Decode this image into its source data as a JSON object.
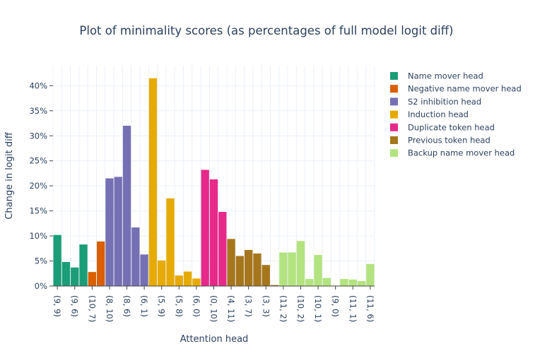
{
  "chart_data": {
    "type": "bar",
    "title": "Plot of minimality scores (as percentages of full model logit diff)",
    "xlabel": "Attention head",
    "ylabel": "Change in logit diff",
    "ylim": [
      0,
      44
    ],
    "yticks": [
      0,
      5,
      10,
      15,
      20,
      25,
      30,
      35,
      40
    ],
    "ytick_labels": [
      "0%",
      "5%",
      "10%",
      "15%",
      "20%",
      "25%",
      "30%",
      "35%",
      "40%"
    ],
    "grid": true,
    "legend_position": "right",
    "x_tick_labels": [
      {
        "index": 0,
        "label": "(9, 9)"
      },
      {
        "index": 2,
        "label": "(9, 6)"
      },
      {
        "index": 4,
        "label": "(10, 7)"
      },
      {
        "index": 6,
        "label": "(8, 10)"
      },
      {
        "index": 8,
        "label": "(8, 6)"
      },
      {
        "index": 10,
        "label": "(6, 1)"
      },
      {
        "index": 12,
        "label": "(5, 9)"
      },
      {
        "index": 14,
        "label": "(5, 8)"
      },
      {
        "index": 16,
        "label": "(6, 0)"
      },
      {
        "index": 18,
        "label": "(0, 10)"
      },
      {
        "index": 20,
        "label": "(4, 11)"
      },
      {
        "index": 22,
        "label": "(3, 7)"
      },
      {
        "index": 24,
        "label": "(3, 3)"
      },
      {
        "index": 26,
        "label": "(11, 2)"
      },
      {
        "index": 28,
        "label": "(10, 2)"
      },
      {
        "index": 30,
        "label": "(10, 1)"
      },
      {
        "index": 32,
        "label": "(9, 0)"
      },
      {
        "index": 34,
        "label": "(11, 1)"
      },
      {
        "index": 36,
        "label": "(11, 6)"
      }
    ],
    "series": [
      {
        "name": "Name mover head",
        "color": "#1b9e77",
        "start_index": 0,
        "values": [
          10.2,
          4.8,
          3.7,
          8.3
        ]
      },
      {
        "name": "Negative name mover head",
        "color": "#d95f02",
        "start_index": 4,
        "values": [
          2.8,
          8.9
        ]
      },
      {
        "name": "S2 inhibition head",
        "color": "#7570b3",
        "start_index": 6,
        "values": [
          21.5,
          21.8,
          32.0,
          11.7,
          6.3
        ]
      },
      {
        "name": "Induction head",
        "color": "#e6ab02",
        "start_index": 11,
        "values": [
          41.5,
          5.1,
          17.5,
          2.1,
          2.9,
          1.5
        ]
      },
      {
        "name": "Duplicate token head",
        "color": "#e7298a",
        "start_index": 17,
        "values": [
          23.2,
          21.3,
          14.8
        ]
      },
      {
        "name": "Previous token head",
        "color": "#a6761d",
        "start_index": 20,
        "values": [
          9.4,
          6.0,
          7.2,
          6.5,
          4.2,
          0.2
        ]
      },
      {
        "name": "Backup name mover head",
        "color": "#b3e37f",
        "start_index": 26,
        "values": [
          6.7,
          6.7,
          9.0,
          1.4,
          6.2,
          1.6,
          0.1,
          1.4,
          1.3,
          1.0,
          4.4
        ]
      }
    ]
  }
}
